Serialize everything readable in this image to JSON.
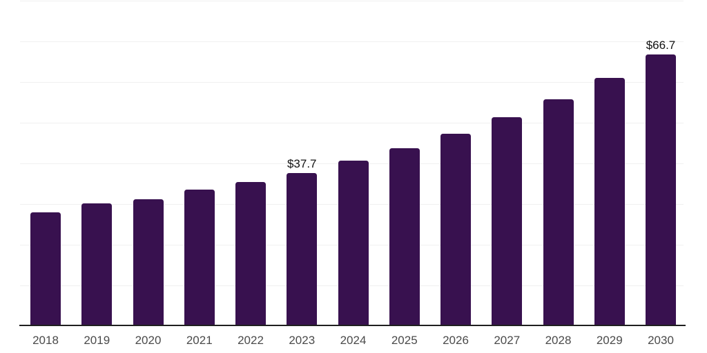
{
  "chart_data": {
    "type": "bar",
    "title": "",
    "xlabel": "",
    "ylabel": "",
    "categories": [
      "2018",
      "2019",
      "2020",
      "2021",
      "2022",
      "2023",
      "2024",
      "2025",
      "2026",
      "2027",
      "2028",
      "2029",
      "2030"
    ],
    "values": [
      27.9,
      30.2,
      31.2,
      33.5,
      35.4,
      37.7,
      40.7,
      43.8,
      47.3,
      51.3,
      55.7,
      61.1,
      66.7
    ],
    "data_labels": [
      "",
      "",
      "",
      "",
      "",
      "$37.7",
      "",
      "",
      "",
      "",
      "",
      "",
      "$66.7"
    ],
    "ylim": [
      0,
      80
    ],
    "gridline_step": 10,
    "grid": true,
    "legend": "none",
    "colors": {
      "background": "#ffffff",
      "bar": "#38114F",
      "gridline": "#f0f0f0",
      "axis_line": "#1f1f1f",
      "tick_label": "#4a4a4a",
      "data_label": "#111111"
    }
  }
}
